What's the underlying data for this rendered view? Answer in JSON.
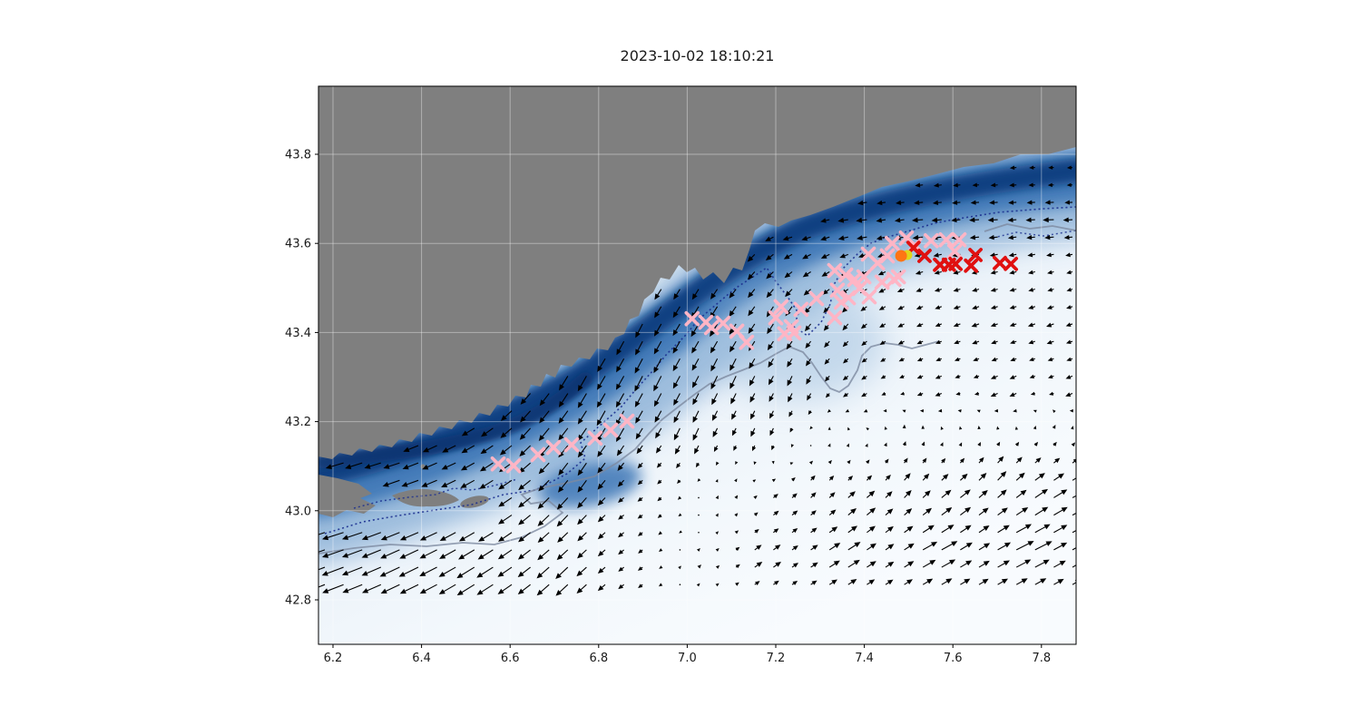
{
  "title": "2023-10-02 18:10:21",
  "chart_data": {
    "type": "scatter",
    "title": "2023-10-02 18:10:21",
    "subtitle": "",
    "xlabel": "",
    "ylabel": "",
    "grid": true,
    "legend": false,
    "x_axis": {
      "ticks": [
        6.2,
        6.4,
        6.6,
        6.8,
        7.0,
        7.2,
        7.4,
        7.6,
        7.8
      ],
      "range": [
        6.167,
        7.878
      ]
    },
    "y_axis": {
      "ticks": [
        42.8,
        43.0,
        43.2,
        43.4,
        43.6,
        43.8
      ],
      "range": [
        42.7,
        43.95
      ]
    },
    "map": {
      "land_color": "#7F7F7F",
      "field_dark_color": "#0B3D7F",
      "field_mid_color": "#3A74B5",
      "field_halo_color": "#8FB3D8",
      "field_light_color": "#F8FBFE",
      "contour_navy_color": "#1B2F8F",
      "contour_slate_color": "#7D8AA0",
      "gridline_color": "#FFFFFF"
    },
    "series": [
      {
        "name": "particles-pink-trail-west",
        "marker": "x",
        "color": "#FFB5C5",
        "size": 6.5,
        "points": [
          [
            6.573,
            43.105
          ],
          [
            6.608,
            43.101
          ],
          [
            6.663,
            43.126
          ],
          [
            6.698,
            43.142
          ],
          [
            6.739,
            43.148
          ],
          [
            6.792,
            43.163
          ],
          [
            6.827,
            43.181
          ],
          [
            6.864,
            43.201
          ]
        ]
      },
      {
        "name": "particles-pink-trail-mid",
        "marker": "x",
        "color": "#FFB5C5",
        "size": 6.5,
        "points": [
          [
            7.011,
            43.431
          ],
          [
            7.042,
            43.423
          ],
          [
            7.055,
            43.411
          ],
          [
            7.081,
            43.421
          ],
          [
            7.112,
            43.403
          ],
          [
            7.134,
            43.378
          ],
          [
            7.2,
            43.433
          ],
          [
            7.212,
            43.458
          ],
          [
            7.22,
            43.397
          ],
          [
            7.235,
            43.413
          ],
          [
            7.241,
            43.399
          ],
          [
            7.257,
            43.452
          ],
          [
            7.292,
            43.476
          ],
          [
            7.333,
            43.433
          ],
          [
            7.348,
            43.468
          ]
        ]
      },
      {
        "name": "particles-pink-cluster-east",
        "marker": "x",
        "color": "#FFB5C5",
        "size": 6.5,
        "points": [
          [
            7.333,
            43.539
          ],
          [
            7.339,
            43.495
          ],
          [
            7.358,
            43.529
          ],
          [
            7.364,
            43.478
          ],
          [
            7.378,
            43.519
          ],
          [
            7.389,
            43.499
          ],
          [
            7.399,
            43.525
          ],
          [
            7.409,
            43.576
          ],
          [
            7.411,
            43.48
          ],
          [
            7.43,
            43.556
          ],
          [
            7.44,
            43.513
          ],
          [
            7.452,
            43.572
          ],
          [
            7.463,
            43.6
          ],
          [
            7.467,
            43.519
          ],
          [
            7.477,
            43.525
          ],
          [
            7.495,
            43.612
          ],
          [
            7.514,
            43.596
          ],
          [
            7.551,
            43.606
          ],
          [
            7.585,
            43.608
          ],
          [
            7.604,
            43.582
          ],
          [
            7.614,
            43.608
          ]
        ]
      },
      {
        "name": "observations-red",
        "marker": "x",
        "color": "#E01010",
        "size": 6,
        "points": [
          [
            7.511,
            43.59
          ],
          [
            7.536,
            43.572
          ],
          [
            7.571,
            43.552
          ],
          [
            7.591,
            43.552
          ],
          [
            7.606,
            43.554
          ],
          [
            7.641,
            43.55
          ],
          [
            7.651,
            43.574
          ],
          [
            7.706,
            43.556
          ],
          [
            7.731,
            43.554
          ]
        ]
      },
      {
        "name": "release-point-yellow",
        "marker": "circle",
        "color": "#E0D61A",
        "size": 5.5,
        "points": [
          [
            7.497,
            43.574
          ]
        ]
      },
      {
        "name": "release-point-orange",
        "marker": "circle",
        "color": "#FF7514",
        "size": 6.5,
        "points": [
          [
            7.483,
            43.572
          ]
        ]
      }
    ],
    "quiver": {
      "name": "surface-current-field",
      "color": "#000000",
      "grid_step_deg": 0.042,
      "units": "display-relative",
      "samples": [
        [
          6.21,
          42.94,
          -26,
          -8
        ],
        [
          6.21,
          42.86,
          -26,
          -10
        ],
        [
          6.37,
          42.88,
          -24,
          -12
        ],
        [
          6.53,
          42.86,
          -22,
          -14
        ],
        [
          6.72,
          42.86,
          -16,
          -16
        ],
        [
          6.88,
          42.87,
          -6,
          -4
        ],
        [
          7.01,
          42.88,
          6,
          6
        ],
        [
          7.17,
          42.89,
          14,
          10
        ],
        [
          7.35,
          42.9,
          20,
          12
        ],
        [
          7.56,
          42.91,
          24,
          12
        ],
        [
          7.76,
          42.92,
          26,
          12
        ],
        [
          7.87,
          43.01,
          22,
          10
        ],
        [
          6.21,
          43.05,
          -22,
          -4
        ],
        [
          6.39,
          43.05,
          -20,
          -6
        ],
        [
          6.6,
          43.07,
          -16,
          -10
        ],
        [
          6.76,
          43.09,
          -10,
          -18
        ],
        [
          6.92,
          43.09,
          -4,
          -2
        ],
        [
          7.09,
          43.05,
          4,
          8
        ],
        [
          7.29,
          43.05,
          8,
          10
        ],
        [
          7.5,
          43.05,
          10,
          12
        ],
        [
          7.7,
          43.07,
          12,
          14
        ],
        [
          6.33,
          43.13,
          -18,
          -4
        ],
        [
          6.47,
          43.11,
          -16,
          -6
        ],
        [
          6.51,
          43.15,
          -14,
          -8
        ],
        [
          6.68,
          43.19,
          -12,
          -16
        ],
        [
          6.84,
          43.21,
          -10,
          -22
        ],
        [
          7.01,
          43.19,
          -8,
          -20
        ],
        [
          7.17,
          43.19,
          -6,
          -14
        ],
        [
          7.33,
          43.17,
          2,
          6
        ],
        [
          7.5,
          43.17,
          2,
          8
        ],
        [
          7.66,
          43.19,
          0,
          4
        ],
        [
          7.83,
          43.19,
          4,
          6
        ],
        [
          6.76,
          43.29,
          -10,
          -20
        ],
        [
          6.92,
          43.31,
          -10,
          -22
        ],
        [
          7.09,
          43.31,
          -8,
          -20
        ],
        [
          7.25,
          43.29,
          -6,
          -16
        ],
        [
          7.39,
          43.27,
          -10,
          -6
        ],
        [
          7.56,
          43.27,
          -12,
          -6
        ],
        [
          7.72,
          43.27,
          -14,
          -8
        ],
        [
          7.87,
          43.27,
          -12,
          -6
        ],
        [
          6.88,
          43.41,
          -8,
          -18
        ],
        [
          7.05,
          43.43,
          -10,
          -18
        ],
        [
          7.21,
          43.45,
          -8,
          -16
        ],
        [
          7.35,
          43.43,
          -6,
          -10
        ],
        [
          7.5,
          43.41,
          -8,
          -4
        ],
        [
          7.66,
          43.41,
          -10,
          -4
        ],
        [
          7.82,
          43.41,
          -10,
          -4
        ],
        [
          7.01,
          43.53,
          -6,
          -12
        ],
        [
          7.15,
          43.56,
          -8,
          -10
        ],
        [
          7.29,
          43.56,
          -10,
          -6
        ],
        [
          7.44,
          43.53,
          -8,
          -4
        ],
        [
          7.58,
          43.51,
          -8,
          -2
        ],
        [
          7.72,
          43.51,
          -8,
          -2
        ],
        [
          7.87,
          43.51,
          -6,
          -2
        ],
        [
          7.25,
          43.64,
          -14,
          0
        ],
        [
          7.39,
          43.64,
          -16,
          0
        ],
        [
          7.54,
          43.64,
          -16,
          0
        ],
        [
          7.68,
          43.65,
          -14,
          0
        ],
        [
          7.83,
          43.66,
          -16,
          0
        ],
        [
          7.33,
          43.72,
          -8,
          0
        ],
        [
          7.5,
          43.73,
          -8,
          0
        ],
        [
          7.66,
          43.74,
          -6,
          0
        ],
        [
          7.8,
          43.76,
          -6,
          0
        ],
        [
          7.21,
          43.69,
          -8,
          0
        ],
        [
          7.85,
          43.74,
          -4,
          0
        ],
        [
          6.25,
          43.0,
          -24,
          -6
        ],
        [
          6.37,
          42.98,
          -22,
          -8
        ],
        [
          6.55,
          42.99,
          -18,
          -10
        ],
        [
          6.72,
          43.01,
          -14,
          -16
        ],
        [
          6.88,
          43.01,
          -6,
          -2
        ],
        [
          7.05,
          43.01,
          2,
          4
        ],
        [
          7.21,
          43.01,
          10,
          8
        ],
        [
          7.39,
          43.01,
          14,
          12
        ],
        [
          7.6,
          43.02,
          16,
          12
        ],
        [
          7.8,
          43.03,
          18,
          12
        ]
      ]
    }
  }
}
